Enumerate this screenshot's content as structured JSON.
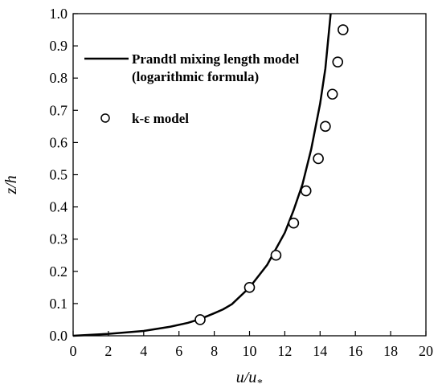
{
  "chart_data": {
    "type": "line",
    "xlim": [
      0,
      20
    ],
    "ylim": [
      0,
      1.0
    ],
    "xticks": [
      "0",
      "2",
      "4",
      "6",
      "8",
      "10",
      "12",
      "14",
      "16",
      "18",
      "20"
    ],
    "yticks": [
      "0.0",
      "0.1",
      "0.2",
      "0.3",
      "0.4",
      "0.5",
      "0.6",
      "0.7",
      "0.8",
      "0.9",
      "1.0"
    ],
    "xlabel": {
      "main": "u/u",
      "sub": "*"
    },
    "ylabel": "z/h",
    "grid": false,
    "legend_position": "top-left",
    "series": [
      {
        "name": "Prandtl mixing length model",
        "name_line2": "(logarithmic formula)",
        "style": "line",
        "color": "#000000",
        "x": [
          0.0,
          2.0,
          4.0,
          5.5,
          6.5,
          7.2,
          8.0,
          8.5,
          9.0,
          10.0,
          11.0,
          12.0,
          12.5,
          13.0,
          13.5,
          14.0,
          14.3,
          14.6
        ],
        "y": [
          0.0,
          0.006,
          0.015,
          0.028,
          0.04,
          0.052,
          0.07,
          0.082,
          0.098,
          0.15,
          0.22,
          0.32,
          0.39,
          0.47,
          0.58,
          0.72,
          0.83,
          1.0
        ]
      },
      {
        "name": "k-ε model",
        "style": "marker",
        "color": "#000000",
        "x": [
          7.2,
          10.0,
          11.5,
          12.5,
          13.2,
          13.9,
          14.3,
          14.7,
          15.0,
          15.3
        ],
        "y": [
          0.05,
          0.15,
          0.25,
          0.35,
          0.45,
          0.55,
          0.65,
          0.75,
          0.85,
          0.95
        ]
      }
    ]
  }
}
